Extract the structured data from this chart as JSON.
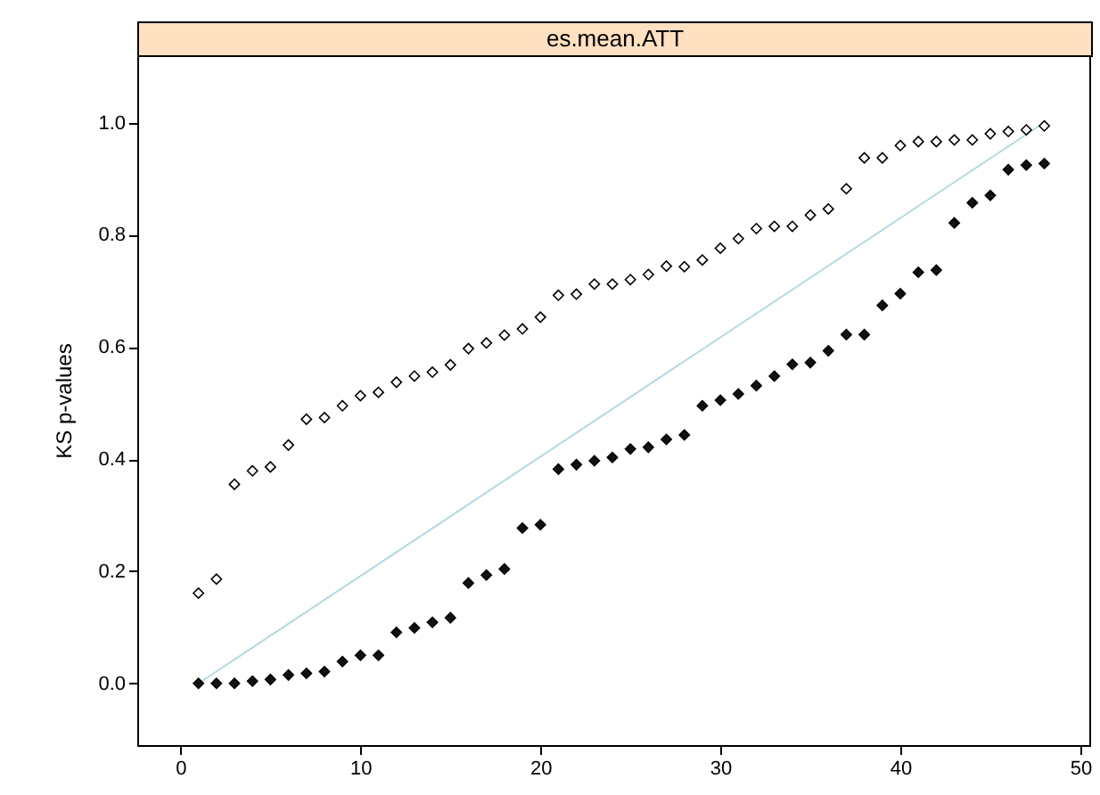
{
  "chart_data": {
    "type": "scatter",
    "title": "es.mean.ATT",
    "ylabel": "KS p-values",
    "x": [
      1,
      2,
      3,
      4,
      5,
      6,
      7,
      8,
      9,
      10,
      11,
      12,
      13,
      14,
      15,
      16,
      17,
      18,
      19,
      20,
      21,
      22,
      23,
      24,
      25,
      26,
      27,
      28,
      29,
      30,
      31,
      32,
      33,
      34,
      35,
      36,
      37,
      38,
      39,
      40,
      41,
      42,
      43,
      44,
      45,
      46,
      47,
      48
    ],
    "series": [
      {
        "color": "#ffffff",
        "marker": "diamond",
        "values": [
          0.161,
          0.186,
          0.355,
          0.379,
          0.386,
          0.425,
          0.471,
          0.474,
          0.495,
          0.513,
          0.519,
          0.537,
          0.548,
          0.555,
          0.568,
          0.597,
          0.607,
          0.621,
          0.632,
          0.653,
          0.692,
          0.694,
          0.712,
          0.712,
          0.72,
          0.729,
          0.744,
          0.743,
          0.755,
          0.776,
          0.793,
          0.811,
          0.815,
          0.815,
          0.835,
          0.846,
          0.882,
          0.937,
          0.937,
          0.959,
          0.966,
          0.966,
          0.969,
          0.969,
          0.98,
          0.984,
          0.987,
          0.994
        ]
      },
      {
        "color": "#111111",
        "marker": "diamond",
        "values": [
          0.0,
          0.0,
          0.0,
          0.004,
          0.007,
          0.015,
          0.018,
          0.021,
          0.039,
          0.05,
          0.05,
          0.091,
          0.099,
          0.109,
          0.117,
          0.179,
          0.193,
          0.204,
          0.277,
          0.283,
          0.382,
          0.39,
          0.397,
          0.403,
          0.418,
          0.421,
          0.435,
          0.443,
          0.495,
          0.505,
          0.516,
          0.531,
          0.548,
          0.569,
          0.572,
          0.593,
          0.622,
          0.622,
          0.674,
          0.695,
          0.733,
          0.737,
          0.821,
          0.857,
          0.87,
          0.916,
          0.924,
          0.927
        ]
      },
      {
        "type": "line",
        "color": "#b3d9e3",
        "x": [
          1,
          48
        ],
        "values": [
          0.0,
          1.0
        ],
        "marker": "none"
      }
    ],
    "xlim": [
      -2.4,
      50.5
    ],
    "xticks": [
      0,
      10,
      20,
      30,
      40,
      50
    ],
    "ylim": [
      -0.11,
      1.12
    ],
    "yticks": [
      {
        "value": 0,
        "label": "0.0"
      },
      {
        "value": 0.2,
        "label": "0.2"
      },
      {
        "value": 0.4,
        "label": "0.4"
      },
      {
        "value": 0.6,
        "label": "0.6"
      },
      {
        "value": 0.8,
        "label": "0.8"
      },
      {
        "value": 1,
        "label": "1.0"
      }
    ],
    "grid": false
  }
}
